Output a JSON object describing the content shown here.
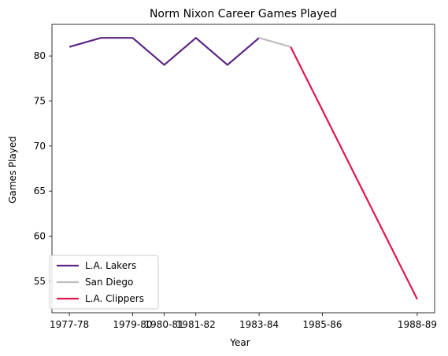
{
  "chart_data": {
    "type": "line",
    "title": "Norm Nixon Career Games Played",
    "xlabel": "Year",
    "ylabel": "Games Played",
    "x_tick_labels": [
      "1977-78",
      "1979-80",
      "1980-81",
      "1981-82",
      "1983-84",
      "1985-86",
      "1988-89"
    ],
    "y_ticks": [
      55,
      60,
      65,
      70,
      75,
      80
    ],
    "ylim": [
      51.5,
      83.5
    ],
    "grid": false,
    "legend_position": "lower-left",
    "series": [
      {
        "name": "L.A. Lakers",
        "color": "#5b2483",
        "points": [
          {
            "x": "1977-78",
            "y": 81
          },
          {
            "x": "1978-79",
            "y": 82
          },
          {
            "x": "1979-80",
            "y": 82
          },
          {
            "x": "1980-81",
            "y": 79
          },
          {
            "x": "1981-82",
            "y": 82
          },
          {
            "x": "1982-83",
            "y": 79
          },
          {
            "x": "1983-84",
            "y": 82
          }
        ]
      },
      {
        "name": "San Diego",
        "color": "#bdbdbd",
        "points": [
          {
            "x": "1983-84",
            "y": 82
          },
          {
            "x": "1984-85",
            "y": 81
          }
        ]
      },
      {
        "name": "L.A. Clippers",
        "color": "#e0174f",
        "points": [
          {
            "x": "1984-85",
            "y": 81
          },
          {
            "x": "1988-89",
            "y": 53
          }
        ]
      }
    ]
  }
}
